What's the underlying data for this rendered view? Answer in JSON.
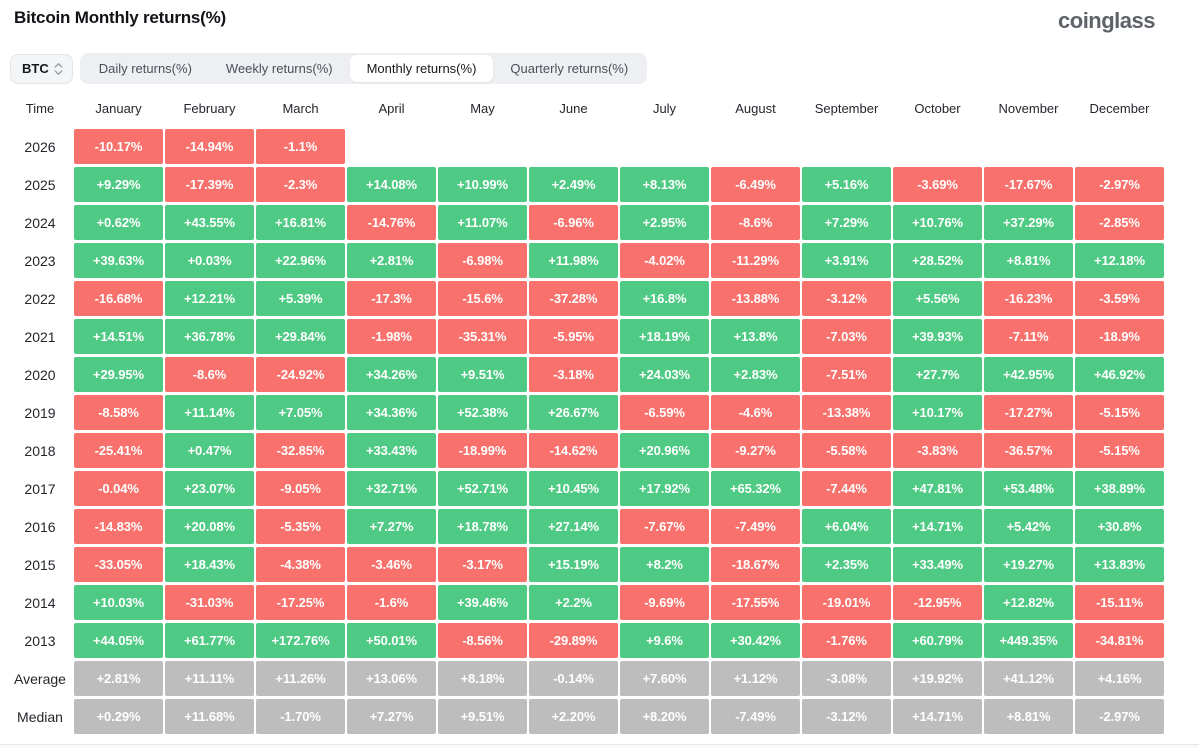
{
  "page": {
    "title": "Bitcoin Monthly returns(%)",
    "logo": "coinglass"
  },
  "controls": {
    "coin_select": {
      "value": "BTC"
    },
    "tabs": [
      {
        "name": "tab-daily-returns",
        "label": "Daily returns(%)",
        "active": false
      },
      {
        "name": "tab-weekly-returns",
        "label": "Weekly returns(%)",
        "active": false
      },
      {
        "name": "tab-monthly-returns",
        "label": "Monthly returns(%)",
        "active": true
      },
      {
        "name": "tab-quarterly-returns",
        "label": "Quarterly returns(%)",
        "active": false
      }
    ]
  },
  "colors": {
    "positive": "#4fca84",
    "negative": "#f8716c",
    "neutral": "#bdbdbd"
  },
  "table": {
    "columns": [
      "Time",
      "January",
      "February",
      "March",
      "April",
      "May",
      "June",
      "July",
      "August",
      "September",
      "October",
      "November",
      "December"
    ],
    "rows": [
      {
        "label": "2026",
        "kind": "year",
        "values": [
          "-10.17%",
          "-14.94%",
          "-1.1%",
          "",
          "",
          "",
          "",
          "",
          "",
          "",
          "",
          ""
        ]
      },
      {
        "label": "2025",
        "kind": "year",
        "values": [
          "+9.29%",
          "-17.39%",
          "-2.3%",
          "+14.08%",
          "+10.99%",
          "+2.49%",
          "+8.13%",
          "-6.49%",
          "+5.16%",
          "-3.69%",
          "-17.67%",
          "-2.97%"
        ]
      },
      {
        "label": "2024",
        "kind": "year",
        "values": [
          "+0.62%",
          "+43.55%",
          "+16.81%",
          "-14.76%",
          "+11.07%",
          "-6.96%",
          "+2.95%",
          "-8.6%",
          "+7.29%",
          "+10.76%",
          "+37.29%",
          "-2.85%"
        ]
      },
      {
        "label": "2023",
        "kind": "year",
        "values": [
          "+39.63%",
          "+0.03%",
          "+22.96%",
          "+2.81%",
          "-6.98%",
          "+11.98%",
          "-4.02%",
          "-11.29%",
          "+3.91%",
          "+28.52%",
          "+8.81%",
          "+12.18%"
        ]
      },
      {
        "label": "2022",
        "kind": "year",
        "values": [
          "-16.68%",
          "+12.21%",
          "+5.39%",
          "-17.3%",
          "-15.6%",
          "-37.28%",
          "+16.8%",
          "-13.88%",
          "-3.12%",
          "+5.56%",
          "-16.23%",
          "-3.59%"
        ]
      },
      {
        "label": "2021",
        "kind": "year",
        "values": [
          "+14.51%",
          "+36.78%",
          "+29.84%",
          "-1.98%",
          "-35.31%",
          "-5.95%",
          "+18.19%",
          "+13.8%",
          "-7.03%",
          "+39.93%",
          "-7.11%",
          "-18.9%"
        ]
      },
      {
        "label": "2020",
        "kind": "year",
        "values": [
          "+29.95%",
          "-8.6%",
          "-24.92%",
          "+34.26%",
          "+9.51%",
          "-3.18%",
          "+24.03%",
          "+2.83%",
          "-7.51%",
          "+27.7%",
          "+42.95%",
          "+46.92%"
        ]
      },
      {
        "label": "2019",
        "kind": "year",
        "values": [
          "-8.58%",
          "+11.14%",
          "+7.05%",
          "+34.36%",
          "+52.38%",
          "+26.67%",
          "-6.59%",
          "-4.6%",
          "-13.38%",
          "+10.17%",
          "-17.27%",
          "-5.15%"
        ]
      },
      {
        "label": "2018",
        "kind": "year",
        "values": [
          "-25.41%",
          "+0.47%",
          "-32.85%",
          "+33.43%",
          "-18.99%",
          "-14.62%",
          "+20.96%",
          "-9.27%",
          "-5.58%",
          "-3.83%",
          "-36.57%",
          "-5.15%"
        ]
      },
      {
        "label": "2017",
        "kind": "year",
        "values": [
          "-0.04%",
          "+23.07%",
          "-9.05%",
          "+32.71%",
          "+52.71%",
          "+10.45%",
          "+17.92%",
          "+65.32%",
          "-7.44%",
          "+47.81%",
          "+53.48%",
          "+38.89%"
        ]
      },
      {
        "label": "2016",
        "kind": "year",
        "values": [
          "-14.83%",
          "+20.08%",
          "-5.35%",
          "+7.27%",
          "+18.78%",
          "+27.14%",
          "-7.67%",
          "-7.49%",
          "+6.04%",
          "+14.71%",
          "+5.42%",
          "+30.8%"
        ]
      },
      {
        "label": "2015",
        "kind": "year",
        "values": [
          "-33.05%",
          "+18.43%",
          "-4.38%",
          "-3.46%",
          "-3.17%",
          "+15.19%",
          "+8.2%",
          "-18.67%",
          "+2.35%",
          "+33.49%",
          "+19.27%",
          "+13.83%"
        ]
      },
      {
        "label": "2014",
        "kind": "year",
        "values": [
          "+10.03%",
          "-31.03%",
          "-17.25%",
          "-1.6%",
          "+39.46%",
          "+2.2%",
          "-9.69%",
          "-17.55%",
          "-19.01%",
          "-12.95%",
          "+12.82%",
          "-15.11%"
        ]
      },
      {
        "label": "2013",
        "kind": "year",
        "values": [
          "+44.05%",
          "+61.77%",
          "+172.76%",
          "+50.01%",
          "-8.56%",
          "-29.89%",
          "+9.6%",
          "+30.42%",
          "-1.76%",
          "+60.79%",
          "+449.35%",
          "-34.81%"
        ]
      },
      {
        "label": "Average",
        "kind": "stat",
        "values": [
          "+2.81%",
          "+11.11%",
          "+11.26%",
          "+13.06%",
          "+8.18%",
          "-0.14%",
          "+7.60%",
          "+1.12%",
          "-3.08%",
          "+19.92%",
          "+41.12%",
          "+4.16%"
        ]
      },
      {
        "label": "Median",
        "kind": "stat",
        "values": [
          "+0.29%",
          "+11.68%",
          "-1.70%",
          "+7.27%",
          "+9.51%",
          "+2.20%",
          "+8.20%",
          "-7.49%",
          "-3.12%",
          "+14.71%",
          "+8.81%",
          "-2.97%"
        ]
      }
    ]
  }
}
